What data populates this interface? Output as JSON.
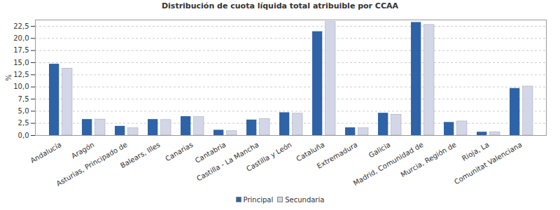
{
  "chart_data": {
    "type": "bar",
    "title": "Distribución de cuota líquida total atribuible por CCAA",
    "y_label": "%",
    "categories": [
      "Andalucía",
      "Aragón",
      "Asturias, Principado de",
      "Balears, Illes",
      "Canarias",
      "Cantabria",
      "Castilla - La Mancha",
      "Castilla y León",
      "Cataluña",
      "Extremadura",
      "Galicia",
      "Madrid, Comunidad de",
      "Murcia, Región de",
      "Rioja, La",
      "Comunitat Valenciana"
    ],
    "series": [
      {
        "name": "Principal",
        "color": "#2f63a8",
        "values": [
          14.7,
          3.3,
          1.9,
          3.3,
          3.9,
          1.1,
          3.2,
          4.7,
          21.4,
          1.6,
          4.6,
          23.3,
          2.7,
          0.7,
          9.7
        ]
      },
      {
        "name": "Secundaria",
        "color": "#d3d6e6",
        "values": [
          13.8,
          3.3,
          1.5,
          3.2,
          3.8,
          0.9,
          3.4,
          4.5,
          23.4,
          1.5,
          4.3,
          22.8,
          2.9,
          0.7,
          10.1
        ]
      }
    ],
    "ylim": [
      0,
      23.8
    ],
    "yticks": [
      {
        "value": 0,
        "label": "0,0"
      },
      {
        "value": 2.5,
        "label": "2,5"
      },
      {
        "value": 5,
        "label": "5,0"
      },
      {
        "value": 7.5,
        "label": "7,5"
      },
      {
        "value": 10,
        "label": "10,0"
      },
      {
        "value": 12.5,
        "label": "12,5"
      },
      {
        "value": 15,
        "label": "15,0"
      },
      {
        "value": 17.5,
        "label": "17,5"
      },
      {
        "value": 20,
        "label": "20,0"
      },
      {
        "value": 22.5,
        "label": "22,5"
      }
    ],
    "grid": true,
    "legend": "bottom"
  }
}
